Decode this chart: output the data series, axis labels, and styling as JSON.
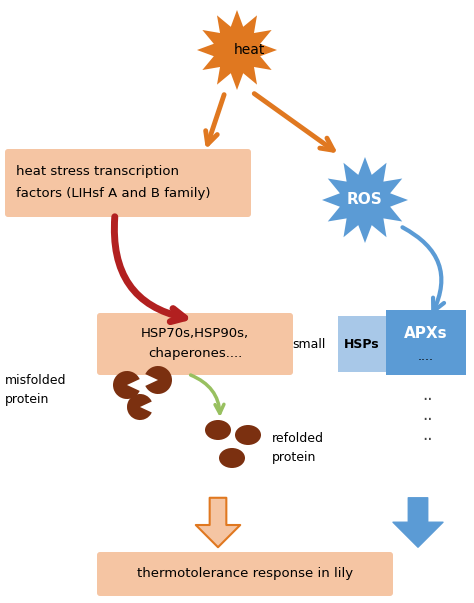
{
  "bg_color": "#ffffff",
  "heat_color": "#E07820",
  "ros_color": "#5B9BD5",
  "hsf_box_color": "#F5C5A3",
  "hsp_box_color": "#F5C5A3",
  "small_label_color": "#ffffff",
  "hsps_box_color": "#A8C8E8",
  "apx_box_color": "#5B9BD5",
  "thermo_box_color": "#F5C5A3",
  "orange_arrow_color": "#E07820",
  "blue_arrow_color": "#5B9BD5",
  "red_arrow_color": "#B22020",
  "green_arrow_color": "#98C060",
  "brown_color": "#7B3010",
  "dots_color": "#444444",
  "heat_text": "heat",
  "ros_text": "ROS",
  "hsf_line1": "heat stress transcription",
  "hsf_line2": "factors (LIHsf A and B family)",
  "hsp_line1": "HSP70s,HSP90s,",
  "hsp_line2": "chaperones....",
  "small_text": "small",
  "hsps_text": "HSPs",
  "apx_text": "APXs",
  "apx_dots": "....",
  "misfolded_text": "misfolded\nprotein",
  "refolded_text": "refolded\nprotein",
  "thermo_text": "thermotolerance response in lily"
}
